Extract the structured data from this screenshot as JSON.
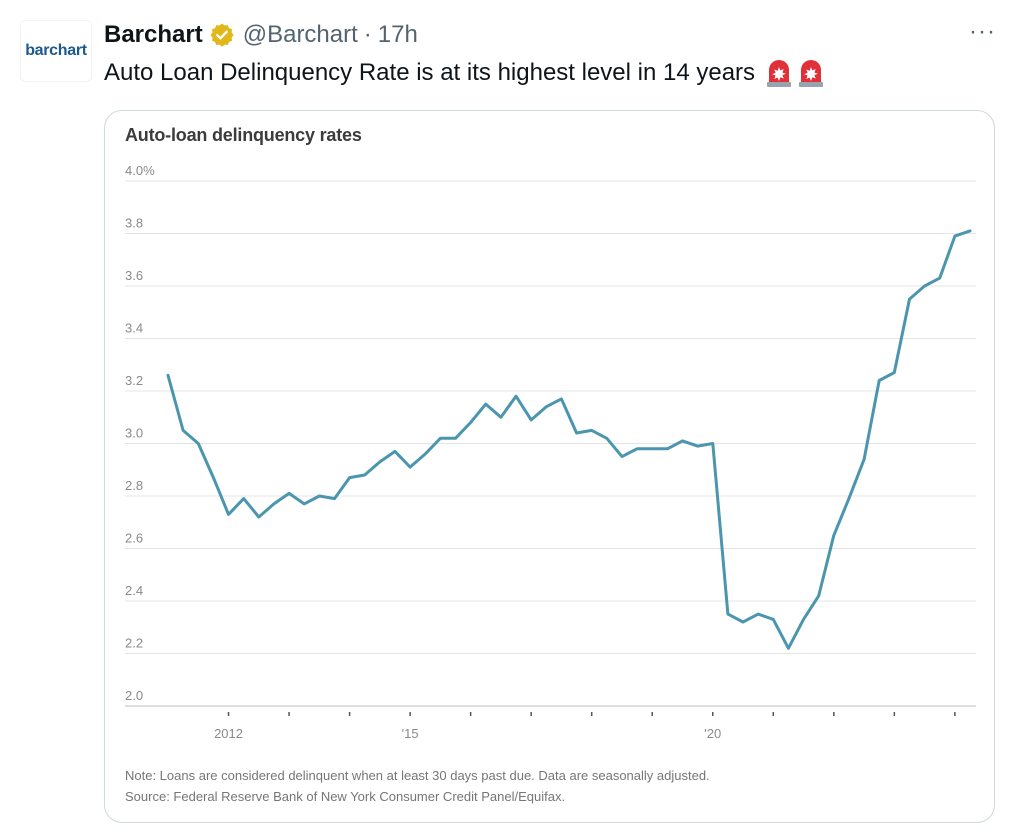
{
  "tweet": {
    "avatar_text": "barchart",
    "display_name": "Barchart",
    "handle": "@Barchart",
    "separator": "·",
    "time": "17h",
    "more_label": "···",
    "text": "Auto Loan Delinquency Rate is at its highest level in 14 years",
    "emoji": [
      "police-car-light",
      "police-car-light"
    ],
    "icons": {
      "verified": "verified-badge-icon",
      "more": "more-options-icon"
    },
    "colors": {
      "verified_badge": "#e2b719",
      "text": "#0f1419",
      "secondary": "#536471"
    }
  },
  "chart_data": {
    "type": "line",
    "title": "Auto-loan delinquency rates",
    "ylabel": "",
    "xlabel": "",
    "ylim": [
      2.0,
      4.0
    ],
    "y_ticks": [
      "4.0%",
      "3.8",
      "3.6",
      "3.4",
      "3.2",
      "3.0",
      "2.8",
      "2.6",
      "2.4",
      "2.2",
      "2.0"
    ],
    "x_ticks": [
      "2012",
      "'15",
      "'20"
    ],
    "grid": true,
    "line_color": "#4b96ae",
    "series": [
      {
        "x": [
          2011.0,
          2011.25,
          2011.5,
          2011.75,
          2012.0,
          2012.25,
          2012.5,
          2012.75,
          2013.0,
          2013.25,
          2013.5,
          2013.75,
          2014.0,
          2014.25,
          2014.5,
          2014.75,
          2015.0,
          2015.25,
          2015.5,
          2015.75,
          2016.0,
          2016.25,
          2016.5,
          2016.75,
          2017.0,
          2017.25,
          2017.5,
          2017.75,
          2018.0,
          2018.25,
          2018.5,
          2018.75,
          2019.0,
          2019.25,
          2019.5,
          2019.75,
          2020.0,
          2020.25,
          2020.5,
          2020.75,
          2021.0,
          2021.25,
          2021.5,
          2021.75,
          2022.0,
          2022.25,
          2022.5,
          2022.75,
          2023.0,
          2023.25,
          2023.5,
          2023.75,
          2024.0,
          2024.25
        ],
        "values": [
          3.26,
          3.05,
          3.0,
          2.87,
          2.73,
          2.79,
          2.72,
          2.77,
          2.81,
          2.77,
          2.8,
          2.79,
          2.87,
          2.88,
          2.93,
          2.97,
          2.91,
          2.96,
          3.02,
          3.02,
          3.08,
          3.15,
          3.1,
          3.18,
          3.09,
          3.14,
          3.17,
          3.04,
          3.05,
          3.02,
          2.95,
          2.98,
          2.98,
          2.98,
          3.01,
          2.99,
          3.0,
          2.35,
          2.32,
          2.35,
          2.33,
          2.22,
          2.33,
          2.42,
          2.65,
          2.79,
          2.94,
          3.24,
          3.27,
          3.55,
          3.6,
          3.63,
          3.79,
          3.81
        ]
      }
    ],
    "note": "Note: Loans are considered delinquent when at least 30 days past due. Data are seasonally adjusted.",
    "source": "Source: Federal Reserve Bank of New York Consumer Credit Panel/Equifax."
  }
}
